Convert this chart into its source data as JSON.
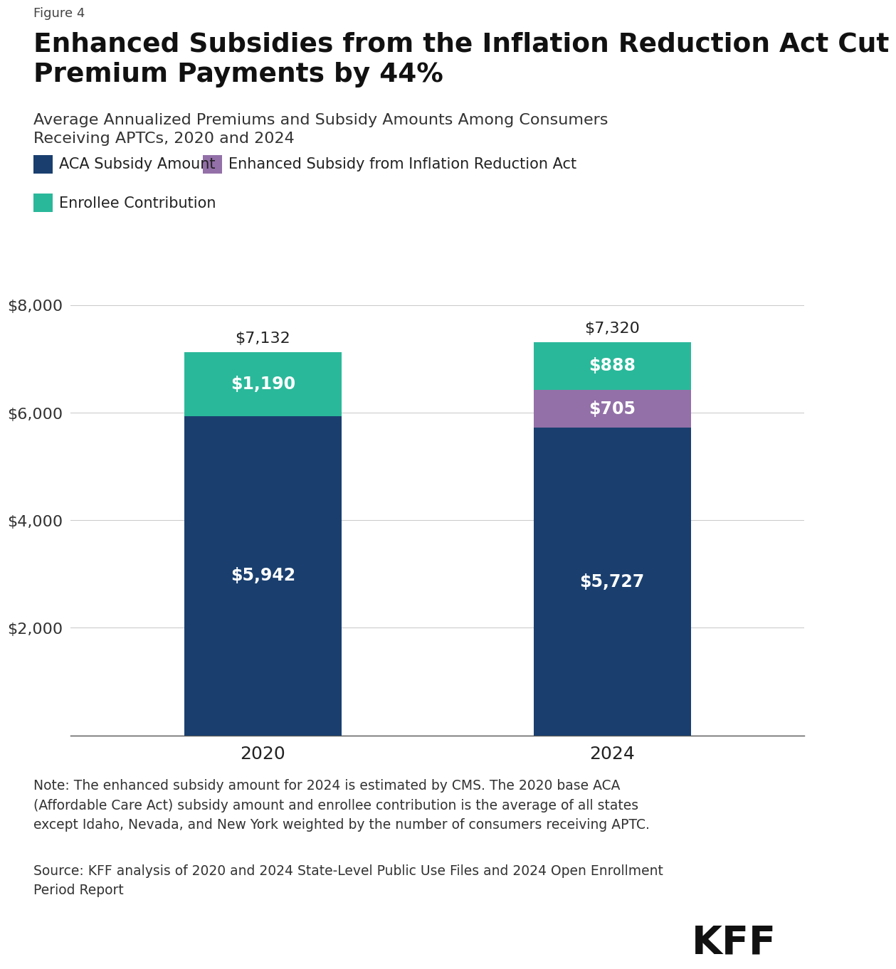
{
  "figure_label": "Figure 4",
  "title": "Enhanced Subsidies from the Inflation Reduction Act Cut\nPremium Payments by 44%",
  "subtitle": "Average Annualized Premiums and Subsidy Amounts Among Consumers\nReceiving APTCs, 2020 and 2024",
  "categories": [
    "2020",
    "2024"
  ],
  "aca_subsidy": [
    5942,
    5727
  ],
  "enhanced_subsidy": [
    0,
    705
  ],
  "enrollee_contribution": [
    1190,
    888
  ],
  "totals": [
    7132,
    7320
  ],
  "color_aca": "#1a3f6f",
  "color_enhanced": "#9370a8",
  "color_enrollee": "#2ab89a",
  "legend_labels": [
    "ACA Subsidy Amount",
    "Enhanced Subsidy from Inflation Reduction Act",
    "Enrollee Contribution"
  ],
  "yticks": [
    0,
    2000,
    4000,
    6000,
    8000
  ],
  "ylim": [
    0,
    8600
  ],
  "note": "Note: The enhanced subsidy amount for 2024 is estimated by CMS. The 2020 base ACA\n(Affordable Care Act) subsidy amount and enrollee contribution is the average of all states\nexcept Idaho, Nevada, and New York weighted by the number of consumers receiving APTC.",
  "source": "Source: KFF analysis of 2020 and 2024 State-Level Public Use Files and 2024 Open Enrollment\nPeriod Report",
  "background_color": "#ffffff",
  "bar_width": 0.45
}
